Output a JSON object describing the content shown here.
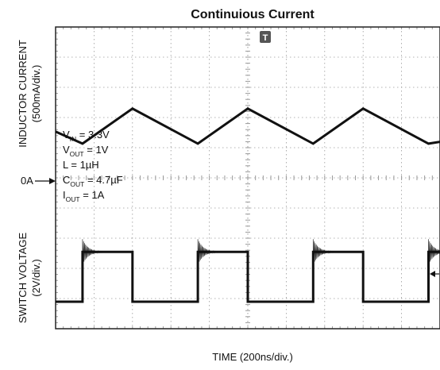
{
  "chart_data": {
    "type": "line",
    "title": "Continuious Current",
    "xlabel": "TIME (200ns/div.)",
    "x_divisions": 10,
    "x_unit": "ns",
    "x_per_div": 200,
    "panels": [
      {
        "name": "inductor",
        "ylabel_line1": "INDUCTOR CURRENT",
        "ylabel_line2": "(500mA/div.)",
        "y_unit": "A",
        "y_per_div": 0.5,
        "ylim": [
          -0.25,
          1.75
        ],
        "zero_marker": "0A",
        "series": [
          {
            "name": "",
            "x": [
              0,
              140,
              400,
              740,
              1000,
              1340,
              1600,
              1940,
              2000
            ],
            "y": [
              0.82,
              0.62,
              1.2,
              0.62,
              1.2,
              0.62,
              1.2,
              0.62,
              0.65
            ]
          }
        ]
      },
      {
        "name": "switch",
        "ylabel_line1": "SWITCH VOLTAGE",
        "ylabel_line2": "(2V/div.)",
        "y_unit": "V",
        "y_per_div": 2,
        "ylim": [
          -1.0,
          8.0
        ],
        "series": [
          {
            "name": "",
            "pulses": [
              {
                "rise": 140,
                "fall": 400
              },
              {
                "rise": 740,
                "fall": 1000
              },
              {
                "rise": 1340,
                "fall": 1600
              },
              {
                "rise": 1940,
                "fall": 2200
              }
            ],
            "low": 0,
            "high": 3.3
          }
        ]
      }
    ],
    "annotations": [
      {
        "name": "vin",
        "main": "V",
        "sub": "IN",
        "rest": " = 3.3V"
      },
      {
        "name": "vout",
        "main": "V",
        "sub": "OUT",
        "rest": " = 1V"
      },
      {
        "name": "l",
        "main": "L = 1µH",
        "sub": "",
        "rest": ""
      },
      {
        "name": "cout",
        "main": "C",
        "sub": "OUT",
        "rest": " = 4.7µF"
      },
      {
        "name": "iout",
        "main": "I",
        "sub": "OUT",
        "rest": " = 1A"
      }
    ],
    "grid": true,
    "trigger_marker": "T",
    "colors": {
      "trace": "#111111",
      "grid": "#9a9a9a",
      "frame": "#222222",
      "background": "#ffffff"
    }
  }
}
